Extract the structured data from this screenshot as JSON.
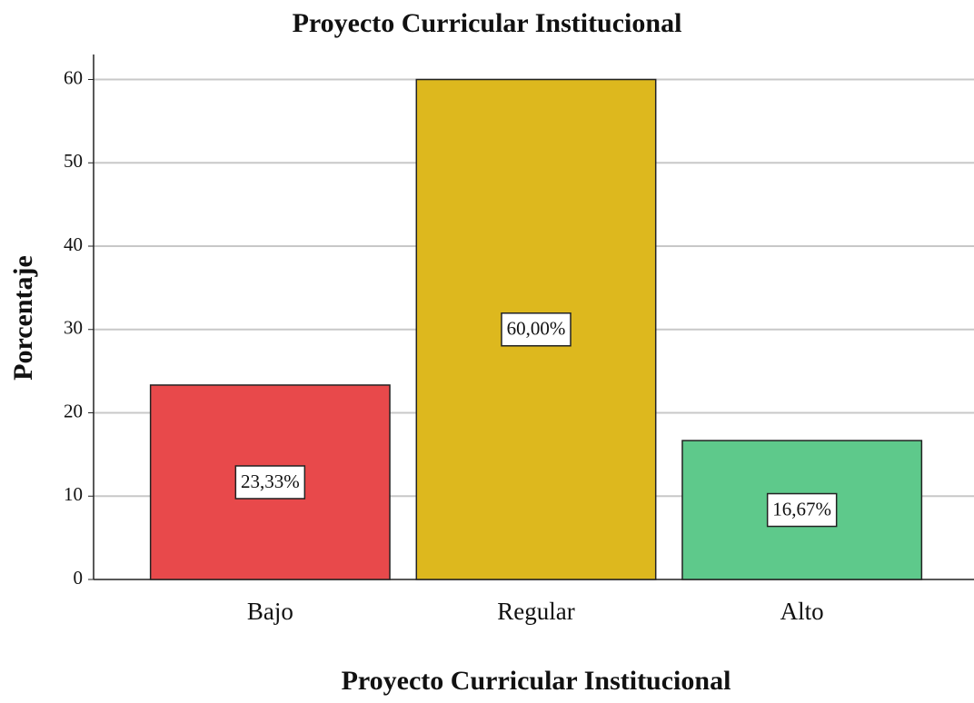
{
  "chart_data": {
    "type": "bar",
    "title": "Proyecto Curricular Institucional",
    "x_label": "Proyecto Curricular Institucional",
    "y_label": "Porcentaje",
    "categories": [
      "Bajo",
      "Regular",
      "Alto"
    ],
    "values": [
      23.33,
      60.0,
      16.67
    ],
    "value_labels": [
      "23,33%",
      "60,00%",
      "16,67%"
    ],
    "colors": [
      "#e8494b",
      "#ddb81e",
      "#5ec98b"
    ],
    "ylim": [
      0,
      63
    ],
    "yticks": [
      0,
      10,
      20,
      30,
      40,
      50,
      60
    ],
    "grid": true
  }
}
